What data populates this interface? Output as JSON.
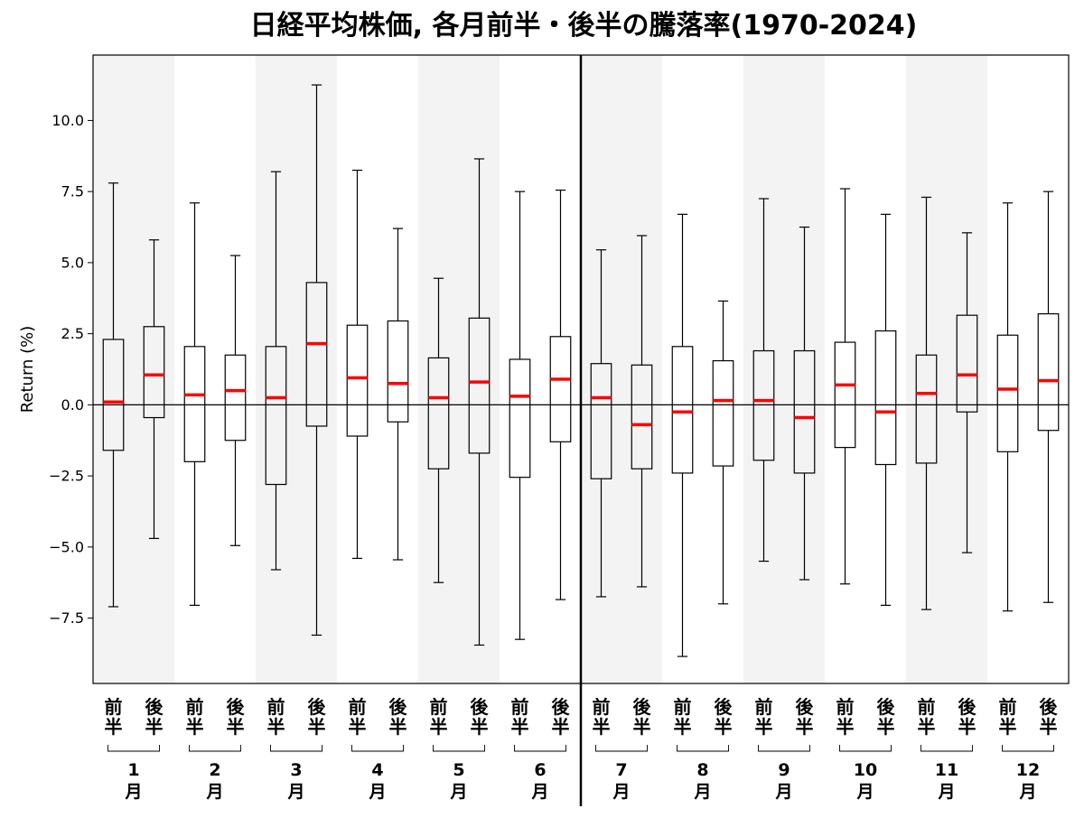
{
  "chart_data": {
    "type": "boxplot",
    "title": "日経平均株価, 各月前半・後半の騰落率(1970-2024)",
    "ylabel": "Return (%)",
    "ylim": [
      -9.8,
      12.3
    ],
    "yticks": [
      -7.5,
      -5.0,
      -2.5,
      0.0,
      2.5,
      5.0,
      7.5,
      10.0
    ],
    "ytick_labels": [
      "−7.5",
      "−5.0",
      "−2.5",
      "0.0",
      "2.5",
      "5.0",
      "7.5",
      "10.0"
    ],
    "half_labels": [
      "前半",
      "後半"
    ],
    "month_unit": "月",
    "months": [
      {
        "month": "1",
        "shaded": true,
        "boxes": [
          {
            "half": "前半",
            "whisker_low": -7.1,
            "q1": -1.6,
            "median": 0.1,
            "q3": 2.3,
            "whisker_high": 7.8
          },
          {
            "half": "後半",
            "whisker_low": -4.7,
            "q1": -0.45,
            "median": 1.05,
            "q3": 2.75,
            "whisker_high": 5.8
          }
        ]
      },
      {
        "month": "2",
        "shaded": false,
        "boxes": [
          {
            "half": "前半",
            "whisker_low": -7.05,
            "q1": -2.0,
            "median": 0.35,
            "q3": 2.05,
            "whisker_high": 7.1
          },
          {
            "half": "後半",
            "whisker_low": -4.95,
            "q1": -1.25,
            "median": 0.5,
            "q3": 1.75,
            "whisker_high": 5.25
          }
        ]
      },
      {
        "month": "3",
        "shaded": true,
        "boxes": [
          {
            "half": "前半",
            "whisker_low": -5.8,
            "q1": -2.8,
            "median": 0.25,
            "q3": 2.05,
            "whisker_high": 8.2
          },
          {
            "half": "後半",
            "whisker_low": -8.1,
            "q1": -0.75,
            "median": 2.15,
            "q3": 4.3,
            "whisker_high": 11.25
          }
        ]
      },
      {
        "month": "4",
        "shaded": false,
        "boxes": [
          {
            "half": "前半",
            "whisker_low": -5.4,
            "q1": -1.1,
            "median": 0.95,
            "q3": 2.8,
            "whisker_high": 8.25
          },
          {
            "half": "後半",
            "whisker_low": -5.45,
            "q1": -0.6,
            "median": 0.75,
            "q3": 2.95,
            "whisker_high": 6.2
          }
        ]
      },
      {
        "month": "5",
        "shaded": true,
        "boxes": [
          {
            "half": "前半",
            "whisker_low": -6.25,
            "q1": -2.25,
            "median": 0.25,
            "q3": 1.65,
            "whisker_high": 4.45
          },
          {
            "half": "後半",
            "whisker_low": -8.45,
            "q1": -1.7,
            "median": 0.8,
            "q3": 3.05,
            "whisker_high": 8.65
          }
        ]
      },
      {
        "month": "6",
        "shaded": false,
        "boxes": [
          {
            "half": "前半",
            "whisker_low": -8.25,
            "q1": -2.55,
            "median": 0.3,
            "q3": 1.6,
            "whisker_high": 7.5
          },
          {
            "half": "後半",
            "whisker_low": -6.85,
            "q1": -1.3,
            "median": 0.9,
            "q3": 2.4,
            "whisker_high": 7.55
          }
        ]
      },
      {
        "month": "7",
        "shaded": true,
        "boxes": [
          {
            "half": "前半",
            "whisker_low": -6.75,
            "q1": -2.6,
            "median": 0.25,
            "q3": 1.45,
            "whisker_high": 5.45
          },
          {
            "half": "後半",
            "whisker_low": -6.4,
            "q1": -2.25,
            "median": -0.7,
            "q3": 1.4,
            "whisker_high": 5.95
          }
        ]
      },
      {
        "month": "8",
        "shaded": false,
        "boxes": [
          {
            "half": "前半",
            "whisker_low": -8.85,
            "q1": -2.4,
            "median": -0.25,
            "q3": 2.05,
            "whisker_high": 6.7
          },
          {
            "half": "後半",
            "whisker_low": -7.0,
            "q1": -2.15,
            "median": 0.15,
            "q3": 1.55,
            "whisker_high": 3.65
          }
        ]
      },
      {
        "month": "9",
        "shaded": true,
        "boxes": [
          {
            "half": "前半",
            "whisker_low": -5.5,
            "q1": -1.95,
            "median": 0.15,
            "q3": 1.9,
            "whisker_high": 7.25
          },
          {
            "half": "後半",
            "whisker_low": -6.15,
            "q1": -2.4,
            "median": -0.45,
            "q3": 1.9,
            "whisker_high": 6.25
          }
        ]
      },
      {
        "month": "10",
        "shaded": false,
        "boxes": [
          {
            "half": "前半",
            "whisker_low": -6.3,
            "q1": -1.5,
            "median": 0.7,
            "q3": 2.2,
            "whisker_high": 7.6
          },
          {
            "half": "後半",
            "whisker_low": -7.05,
            "q1": -2.1,
            "median": -0.25,
            "q3": 2.6,
            "whisker_high": 6.7
          }
        ]
      },
      {
        "month": "11",
        "shaded": true,
        "boxes": [
          {
            "half": "前半",
            "whisker_low": -7.2,
            "q1": -2.05,
            "median": 0.4,
            "q3": 1.75,
            "whisker_high": 7.3
          },
          {
            "half": "後半",
            "whisker_low": -5.2,
            "q1": -0.25,
            "median": 1.05,
            "q3": 3.15,
            "whisker_high": 6.05
          }
        ]
      },
      {
        "month": "12",
        "shaded": false,
        "boxes": [
          {
            "half": "前半",
            "whisker_low": -7.25,
            "q1": -1.65,
            "median": 0.55,
            "q3": 2.45,
            "whisker_high": 7.1
          },
          {
            "half": "後半",
            "whisker_low": -6.95,
            "q1": -0.9,
            "median": 0.85,
            "q3": 3.2,
            "whisker_high": 7.5
          }
        ]
      }
    ],
    "colors": {
      "median": "#ff0000",
      "box": "#000000",
      "shade": "#f3f3f3",
      "zero_line": "#000000"
    },
    "reference_lines": [
      {
        "axis": "y",
        "value": 0
      }
    ],
    "divider_after_month": "6",
    "grid": false
  }
}
